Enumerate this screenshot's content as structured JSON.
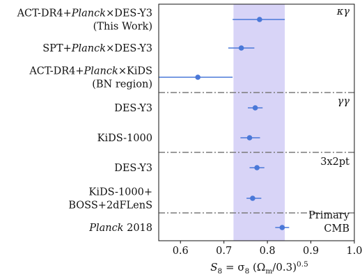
{
  "chart_data": {
    "type": "scatter",
    "title": "",
    "xlabel": "S_8 = σ_8 (Ω_m/0.3)^0.5",
    "xlabel_parts": {
      "s": "S",
      "s_sub": "8",
      "eq": " = σ",
      "sigma_sub": "8",
      "paren_open": " (Ω",
      "omega_sub": "m",
      "div": "/0.3)",
      "pow": "0.5"
    },
    "ylabel": "",
    "xlim": [
      0.55,
      1.0
    ],
    "xticks": [
      0.6,
      0.7,
      0.8,
      0.9,
      1.0
    ],
    "xtick_labels": [
      "0.6",
      "0.7",
      "0.8",
      "0.9",
      "1.0"
    ],
    "grid": false,
    "band": {
      "xmin": 0.722,
      "xmax": 0.84,
      "color": "#b8b0f0"
    },
    "marker_color": "#4a78d8",
    "separator_color": "#7a7a7a",
    "sections": [
      {
        "label": "κγ"
      },
      {
        "label": "γγ"
      },
      {
        "label": "3x2pt"
      },
      {
        "label": "Primary CMB",
        "lines": [
          "Primary",
          "CMB"
        ]
      }
    ],
    "points": [
      {
        "label_lines": [
          [
            "ACT-DR4+",
            {
              "i": "Planck"
            },
            "×DES-Y3"
          ],
          [
            "(This Work)"
          ]
        ],
        "value": 0.782,
        "err_low": 0.062,
        "err_high": 0.058
      },
      {
        "label_lines": [
          [
            "SPT+",
            {
              "i": "Planck"
            },
            "×DES-Y3"
          ]
        ],
        "value": 0.74,
        "err_low": 0.03,
        "err_high": 0.03
      },
      {
        "label_lines": [
          [
            "ACT-DR4+",
            {
              "i": "Planck"
            },
            "×KiDS"
          ],
          [
            "(BN region)"
          ]
        ],
        "value": 0.64,
        "err_low": 0.09,
        "err_high": 0.08
      },
      {
        "label_lines": [
          [
            "DES-Y3"
          ]
        ],
        "value": 0.772,
        "err_low": 0.017,
        "err_high": 0.017
      },
      {
        "label_lines": [
          [
            "KiDS-1000"
          ]
        ],
        "value": 0.759,
        "err_low": 0.021,
        "err_high": 0.024
      },
      {
        "label_lines": [
          [
            "DES-Y3"
          ]
        ],
        "value": 0.776,
        "err_low": 0.017,
        "err_high": 0.017
      },
      {
        "label_lines": [
          [
            "KiDS-1000+"
          ],
          [
            "BOSS+2dFLenS"
          ]
        ],
        "value": 0.766,
        "err_low": 0.014,
        "err_high": 0.02
      },
      {
        "label_lines": [
          [
            {
              "i": "Planck"
            },
            " 2018"
          ]
        ],
        "value": 0.834,
        "err_low": 0.016,
        "err_high": 0.016
      }
    ]
  }
}
